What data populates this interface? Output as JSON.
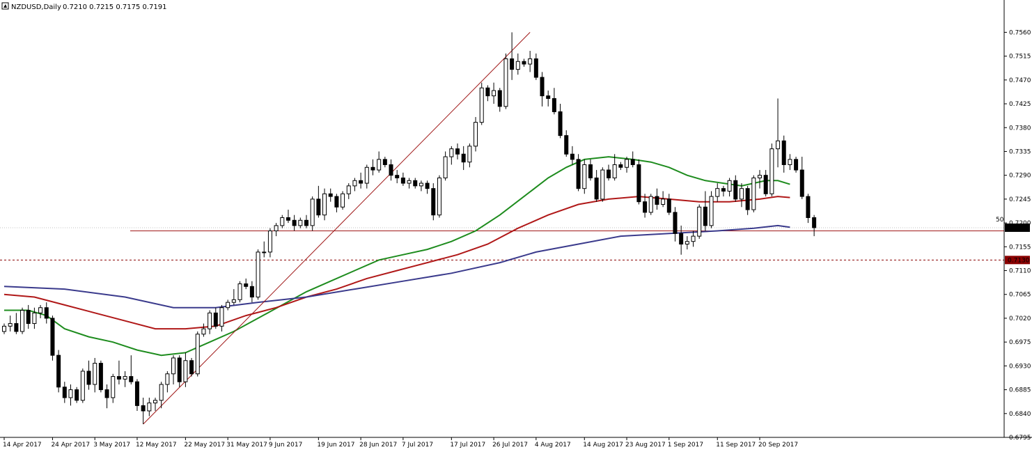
{
  "header": {
    "symbol": "NZDUSD,Daily",
    "ohlc": "0.7210 0.7215 0.7175 0.7191"
  },
  "colors": {
    "background": "#ffffff",
    "candle_up_fill": "#ffffff",
    "candle_down_fill": "#000000",
    "candle_outline": "#000000",
    "ma_fast": "#1e8c1e",
    "ma_mid": "#b01818",
    "ma_slow": "#3a3a8c",
    "trendline": "#a01818",
    "level_line": "#a01818",
    "bid_line": "#c0c0c0",
    "label_bg": "#8b0000",
    "label_text": "#ffffff"
  },
  "chart_data": {
    "type": "candlestick",
    "symbol": "NZDUSD",
    "timeframe": "Daily",
    "ylim": [
      0.6795,
      0.7575
    ],
    "y_ticks": [
      "0.7560",
      "0.7515",
      "0.7470",
      "0.7425",
      "0.7380",
      "0.7335",
      "0.7290",
      "0.7245",
      "0.7200",
      "0.7155",
      "0.7110",
      "0.7065",
      "0.7020",
      "0.6975",
      "0.6930",
      "0.6885",
      "0.6840",
      "0.6795"
    ],
    "x_labels": [
      {
        "label": "14 Apr 2017",
        "i": 0
      },
      {
        "label": "24 Apr 2017",
        "i": 8
      },
      {
        "label": "3 May 2017",
        "i": 15
      },
      {
        "label": "12 May 2017",
        "i": 22
      },
      {
        "label": "22 May 2017",
        "i": 30
      },
      {
        "label": "31 May 2017",
        "i": 37
      },
      {
        "label": "9 Jun 2017",
        "i": 44
      },
      {
        "label": "19 Jun 2017",
        "i": 52
      },
      {
        "label": "28 Jun 2017",
        "i": 59
      },
      {
        "label": "7 Jul 2017",
        "i": 66
      },
      {
        "label": "17 Jul 2017",
        "i": 74
      },
      {
        "label": "26 Jul 2017",
        "i": 81
      },
      {
        "label": "4 Aug 2017",
        "i": 88
      },
      {
        "label": "14 Aug 2017",
        "i": 96
      },
      {
        "label": "23 Aug 2017",
        "i": 103
      },
      {
        "label": "1 Sep 2017",
        "i": 110
      },
      {
        "label": "11 Sep 2017",
        "i": 118
      },
      {
        "label": "20 Sep 2017",
        "i": 125
      }
    ],
    "candles": [
      [
        0.6995,
        0.701,
        0.699,
        0.7005
      ],
      [
        0.7005,
        0.7025,
        0.6995,
        0.701
      ],
      [
        0.701,
        0.703,
        0.699,
        0.6995
      ],
      [
        0.6995,
        0.704,
        0.699,
        0.7035
      ],
      [
        0.7035,
        0.7045,
        0.7,
        0.701
      ],
      [
        0.701,
        0.704,
        0.7,
        0.703
      ],
      [
        0.703,
        0.7045,
        0.702,
        0.704
      ],
      [
        0.704,
        0.705,
        0.701,
        0.702
      ],
      [
        0.702,
        0.7025,
        0.694,
        0.695
      ],
      [
        0.695,
        0.696,
        0.688,
        0.689
      ],
      [
        0.689,
        0.69,
        0.686,
        0.687
      ],
      [
        0.687,
        0.6895,
        0.6855,
        0.6885
      ],
      [
        0.6885,
        0.689,
        0.686,
        0.6865
      ],
      [
        0.6865,
        0.6925,
        0.686,
        0.692
      ],
      [
        0.692,
        0.694,
        0.6885,
        0.6895
      ],
      [
        0.6895,
        0.6945,
        0.688,
        0.6935
      ],
      [
        0.6935,
        0.694,
        0.688,
        0.6885
      ],
      [
        0.6885,
        0.6895,
        0.685,
        0.687
      ],
      [
        0.687,
        0.6915,
        0.686,
        0.691
      ],
      [
        0.691,
        0.694,
        0.6895,
        0.6905
      ],
      [
        0.6905,
        0.692,
        0.689,
        0.691
      ],
      [
        0.691,
        0.695,
        0.6895,
        0.69
      ],
      [
        0.69,
        0.6905,
        0.6845,
        0.6855
      ],
      [
        0.6855,
        0.687,
        0.682,
        0.6845
      ],
      [
        0.6845,
        0.687,
        0.6835,
        0.686
      ],
      [
        0.686,
        0.687,
        0.6845,
        0.6865
      ],
      [
        0.6865,
        0.69,
        0.685,
        0.6895
      ],
      [
        0.6895,
        0.692,
        0.688,
        0.6915
      ],
      [
        0.6915,
        0.695,
        0.6895,
        0.6945
      ],
      [
        0.6945,
        0.695,
        0.689,
        0.69
      ],
      [
        0.69,
        0.6955,
        0.689,
        0.694
      ],
      [
        0.694,
        0.6945,
        0.691,
        0.6915
      ],
      [
        0.6915,
        0.6995,
        0.691,
        0.699
      ],
      [
        0.699,
        0.701,
        0.6985,
        0.7
      ],
      [
        0.7,
        0.7035,
        0.699,
        0.703
      ],
      [
        0.703,
        0.704,
        0.7,
        0.7005
      ],
      [
        0.7005,
        0.7045,
        0.6995,
        0.704
      ],
      [
        0.704,
        0.7055,
        0.7035,
        0.705
      ],
      [
        0.705,
        0.7075,
        0.7045,
        0.7055
      ],
      [
        0.7055,
        0.709,
        0.705,
        0.7085
      ],
      [
        0.7085,
        0.7095,
        0.7075,
        0.708
      ],
      [
        0.708,
        0.709,
        0.705,
        0.706
      ],
      [
        0.706,
        0.715,
        0.7055,
        0.7145
      ],
      [
        0.7145,
        0.7165,
        0.7135,
        0.7145
      ],
      [
        0.7145,
        0.719,
        0.7135,
        0.7185
      ],
      [
        0.7185,
        0.72,
        0.7175,
        0.7195
      ],
      [
        0.7195,
        0.7215,
        0.719,
        0.721
      ],
      [
        0.721,
        0.7225,
        0.72,
        0.7205
      ],
      [
        0.7205,
        0.7215,
        0.7185,
        0.7195
      ],
      [
        0.7195,
        0.721,
        0.719,
        0.7205
      ],
      [
        0.7205,
        0.7215,
        0.719,
        0.7195
      ],
      [
        0.7195,
        0.725,
        0.7185,
        0.7245
      ],
      [
        0.7245,
        0.727,
        0.721,
        0.7215
      ],
      [
        0.7215,
        0.7265,
        0.7205,
        0.7255
      ],
      [
        0.7255,
        0.7265,
        0.724,
        0.725
      ],
      [
        0.725,
        0.7255,
        0.722,
        0.723
      ],
      [
        0.723,
        0.726,
        0.7225,
        0.7255
      ],
      [
        0.7255,
        0.7275,
        0.7245,
        0.727
      ],
      [
        0.727,
        0.7285,
        0.726,
        0.728
      ],
      [
        0.728,
        0.7295,
        0.7265,
        0.7275
      ],
      [
        0.7275,
        0.731,
        0.7265,
        0.7305
      ],
      [
        0.7305,
        0.732,
        0.729,
        0.73
      ],
      [
        0.73,
        0.7335,
        0.7295,
        0.732
      ],
      [
        0.732,
        0.7325,
        0.7305,
        0.731
      ],
      [
        0.731,
        0.732,
        0.728,
        0.729
      ],
      [
        0.729,
        0.73,
        0.7275,
        0.7285
      ],
      [
        0.7285,
        0.7295,
        0.727,
        0.7275
      ],
      [
        0.7275,
        0.7285,
        0.7265,
        0.728
      ],
      [
        0.728,
        0.7285,
        0.7265,
        0.727
      ],
      [
        0.727,
        0.728,
        0.726,
        0.7275
      ],
      [
        0.7275,
        0.728,
        0.7255,
        0.7265
      ],
      [
        0.7265,
        0.7275,
        0.7205,
        0.7215
      ],
      [
        0.7215,
        0.729,
        0.721,
        0.7285
      ],
      [
        0.7285,
        0.7335,
        0.728,
        0.7325
      ],
      [
        0.7325,
        0.7345,
        0.731,
        0.734
      ],
      [
        0.734,
        0.735,
        0.732,
        0.733
      ],
      [
        0.733,
        0.7345,
        0.73,
        0.7315
      ],
      [
        0.7315,
        0.735,
        0.7305,
        0.7345
      ],
      [
        0.7345,
        0.74,
        0.7335,
        0.739
      ],
      [
        0.739,
        0.7465,
        0.7385,
        0.7455
      ],
      [
        0.7455,
        0.746,
        0.743,
        0.744
      ],
      [
        0.744,
        0.7465,
        0.7425,
        0.745
      ],
      [
        0.745,
        0.7455,
        0.741,
        0.742
      ],
      [
        0.742,
        0.752,
        0.7415,
        0.751
      ],
      [
        0.751,
        0.756,
        0.747,
        0.749
      ],
      [
        0.749,
        0.752,
        0.748,
        0.7505
      ],
      [
        0.7505,
        0.751,
        0.7495,
        0.75
      ],
      [
        0.75,
        0.7525,
        0.7485,
        0.751
      ],
      [
        0.751,
        0.752,
        0.747,
        0.7475
      ],
      [
        0.7475,
        0.7485,
        0.742,
        0.744
      ],
      [
        0.744,
        0.745,
        0.742,
        0.7435
      ],
      [
        0.7435,
        0.7455,
        0.7405,
        0.741
      ],
      [
        0.741,
        0.7425,
        0.736,
        0.7365
      ],
      [
        0.7365,
        0.7375,
        0.7325,
        0.733
      ],
      [
        0.733,
        0.7345,
        0.731,
        0.732
      ],
      [
        0.732,
        0.733,
        0.726,
        0.7265
      ],
      [
        0.7265,
        0.732,
        0.7255,
        0.731
      ],
      [
        0.731,
        0.732,
        0.728,
        0.7285
      ],
      [
        0.7285,
        0.73,
        0.724,
        0.7245
      ],
      [
        0.7245,
        0.7305,
        0.724,
        0.73
      ],
      [
        0.73,
        0.731,
        0.728,
        0.7285
      ],
      [
        0.7285,
        0.733,
        0.728,
        0.731
      ],
      [
        0.731,
        0.7315,
        0.73,
        0.7305
      ],
      [
        0.7305,
        0.7325,
        0.7295,
        0.732
      ],
      [
        0.732,
        0.7335,
        0.7305,
        0.731
      ],
      [
        0.731,
        0.732,
        0.7235,
        0.724
      ],
      [
        0.724,
        0.7255,
        0.721,
        0.722
      ],
      [
        0.722,
        0.7255,
        0.7215,
        0.725
      ],
      [
        0.725,
        0.7265,
        0.7225,
        0.7235
      ],
      [
        0.7235,
        0.726,
        0.723,
        0.7245
      ],
      [
        0.7245,
        0.7255,
        0.7215,
        0.722
      ],
      [
        0.722,
        0.723,
        0.7165,
        0.718
      ],
      [
        0.718,
        0.7195,
        0.714,
        0.716
      ],
      [
        0.716,
        0.7175,
        0.715,
        0.7165
      ],
      [
        0.7165,
        0.7185,
        0.7155,
        0.7175
      ],
      [
        0.7175,
        0.7235,
        0.717,
        0.723
      ],
      [
        0.723,
        0.726,
        0.7185,
        0.7195
      ],
      [
        0.7195,
        0.726,
        0.719,
        0.725
      ],
      [
        0.725,
        0.7275,
        0.724,
        0.7265
      ],
      [
        0.7265,
        0.727,
        0.725,
        0.726
      ],
      [
        0.726,
        0.7285,
        0.725,
        0.728
      ],
      [
        0.728,
        0.729,
        0.724,
        0.7245
      ],
      [
        0.7245,
        0.7275,
        0.723,
        0.7265
      ],
      [
        0.7265,
        0.727,
        0.7215,
        0.7225
      ],
      [
        0.7225,
        0.729,
        0.722,
        0.7285
      ],
      [
        0.7285,
        0.73,
        0.7265,
        0.729
      ],
      [
        0.729,
        0.73,
        0.725,
        0.7255
      ],
      [
        0.7255,
        0.735,
        0.725,
        0.734
      ],
      [
        0.734,
        0.7435,
        0.7305,
        0.7355
      ],
      [
        0.7355,
        0.7365,
        0.7295,
        0.731
      ],
      [
        0.731,
        0.733,
        0.73,
        0.732
      ],
      [
        0.732,
        0.7325,
        0.7295,
        0.73
      ],
      [
        0.73,
        0.7325,
        0.7245,
        0.725
      ],
      [
        0.725,
        0.7255,
        0.72,
        0.721
      ],
      [
        0.721,
        0.7215,
        0.7175,
        0.7191
      ]
    ],
    "moving_averages": [
      {
        "color": "#1e8c1e",
        "points": [
          [
            0,
            0.7035
          ],
          [
            4,
            0.7035
          ],
          [
            7,
            0.7025
          ],
          [
            10,
            0.7
          ],
          [
            14,
            0.6985
          ],
          [
            18,
            0.6975
          ],
          [
            22,
            0.696
          ],
          [
            26,
            0.695
          ],
          [
            30,
            0.6955
          ],
          [
            34,
            0.6975
          ],
          [
            38,
            0.6995
          ],
          [
            42,
            0.702
          ],
          [
            46,
            0.7045
          ],
          [
            50,
            0.707
          ],
          [
            54,
            0.709
          ],
          [
            58,
            0.711
          ],
          [
            62,
            0.713
          ],
          [
            66,
            0.714
          ],
          [
            70,
            0.715
          ],
          [
            74,
            0.7165
          ],
          [
            78,
            0.7185
          ],
          [
            82,
            0.7215
          ],
          [
            86,
            0.725
          ],
          [
            90,
            0.7285
          ],
          [
            93,
            0.7305
          ],
          [
            96,
            0.732
          ],
          [
            100,
            0.7325
          ],
          [
            104,
            0.732
          ],
          [
            107,
            0.7315
          ],
          [
            110,
            0.7305
          ],
          [
            113,
            0.729
          ],
          [
            116,
            0.728
          ],
          [
            119,
            0.7275
          ],
          [
            122,
            0.727
          ],
          [
            124,
            0.7275
          ],
          [
            126,
            0.728
          ],
          [
            128,
            0.728
          ],
          [
            130,
            0.7273
          ]
        ]
      },
      {
        "color": "#b01818",
        "points": [
          [
            0,
            0.7065
          ],
          [
            5,
            0.706
          ],
          [
            10,
            0.7045
          ],
          [
            15,
            0.703
          ],
          [
            20,
            0.7015
          ],
          [
            25,
            0.7
          ],
          [
            30,
            0.7
          ],
          [
            35,
            0.7005
          ],
          [
            40,
            0.7025
          ],
          [
            45,
            0.704
          ],
          [
            50,
            0.706
          ],
          [
            55,
            0.7075
          ],
          [
            60,
            0.7095
          ],
          [
            65,
            0.711
          ],
          [
            70,
            0.7125
          ],
          [
            75,
            0.714
          ],
          [
            80,
            0.716
          ],
          [
            85,
            0.719
          ],
          [
            90,
            0.7215
          ],
          [
            95,
            0.7235
          ],
          [
            100,
            0.7245
          ],
          [
            105,
            0.725
          ],
          [
            110,
            0.7245
          ],
          [
            115,
            0.724
          ],
          [
            120,
            0.724
          ],
          [
            125,
            0.7245
          ],
          [
            128,
            0.725
          ],
          [
            130,
            0.7248
          ]
        ]
      },
      {
        "color": "#3a3a8c",
        "points": [
          [
            0,
            0.708
          ],
          [
            10,
            0.7075
          ],
          [
            20,
            0.706
          ],
          [
            28,
            0.704
          ],
          [
            35,
            0.704
          ],
          [
            42,
            0.705
          ],
          [
            50,
            0.706
          ],
          [
            58,
            0.7075
          ],
          [
            66,
            0.709
          ],
          [
            74,
            0.7105
          ],
          [
            82,
            0.7125
          ],
          [
            88,
            0.7145
          ],
          [
            95,
            0.716
          ],
          [
            102,
            0.7175
          ],
          [
            110,
            0.718
          ],
          [
            118,
            0.7185
          ],
          [
            124,
            0.719
          ],
          [
            128,
            0.7195
          ],
          [
            130,
            0.7192
          ]
        ]
      }
    ],
    "trendline": {
      "from": [
        0.682,
        23
      ],
      "to": [
        0.756,
        87
      ]
    },
    "horizontal_levels": [
      {
        "price": 0.7191,
        "style": "dotted",
        "color": "#c0c0c0"
      },
      {
        "price": 0.7185,
        "style": "solid",
        "color": "#a01818",
        "label": "50"
      },
      {
        "price": 0.713,
        "style": "dashed",
        "color": "#8b0000"
      }
    ],
    "price_labels": [
      {
        "price": 0.7191,
        "text": "0.7191",
        "bg": "#000000"
      },
      {
        "price": 0.713,
        "text": "0.7130",
        "bg": "#8b0000"
      }
    ]
  }
}
